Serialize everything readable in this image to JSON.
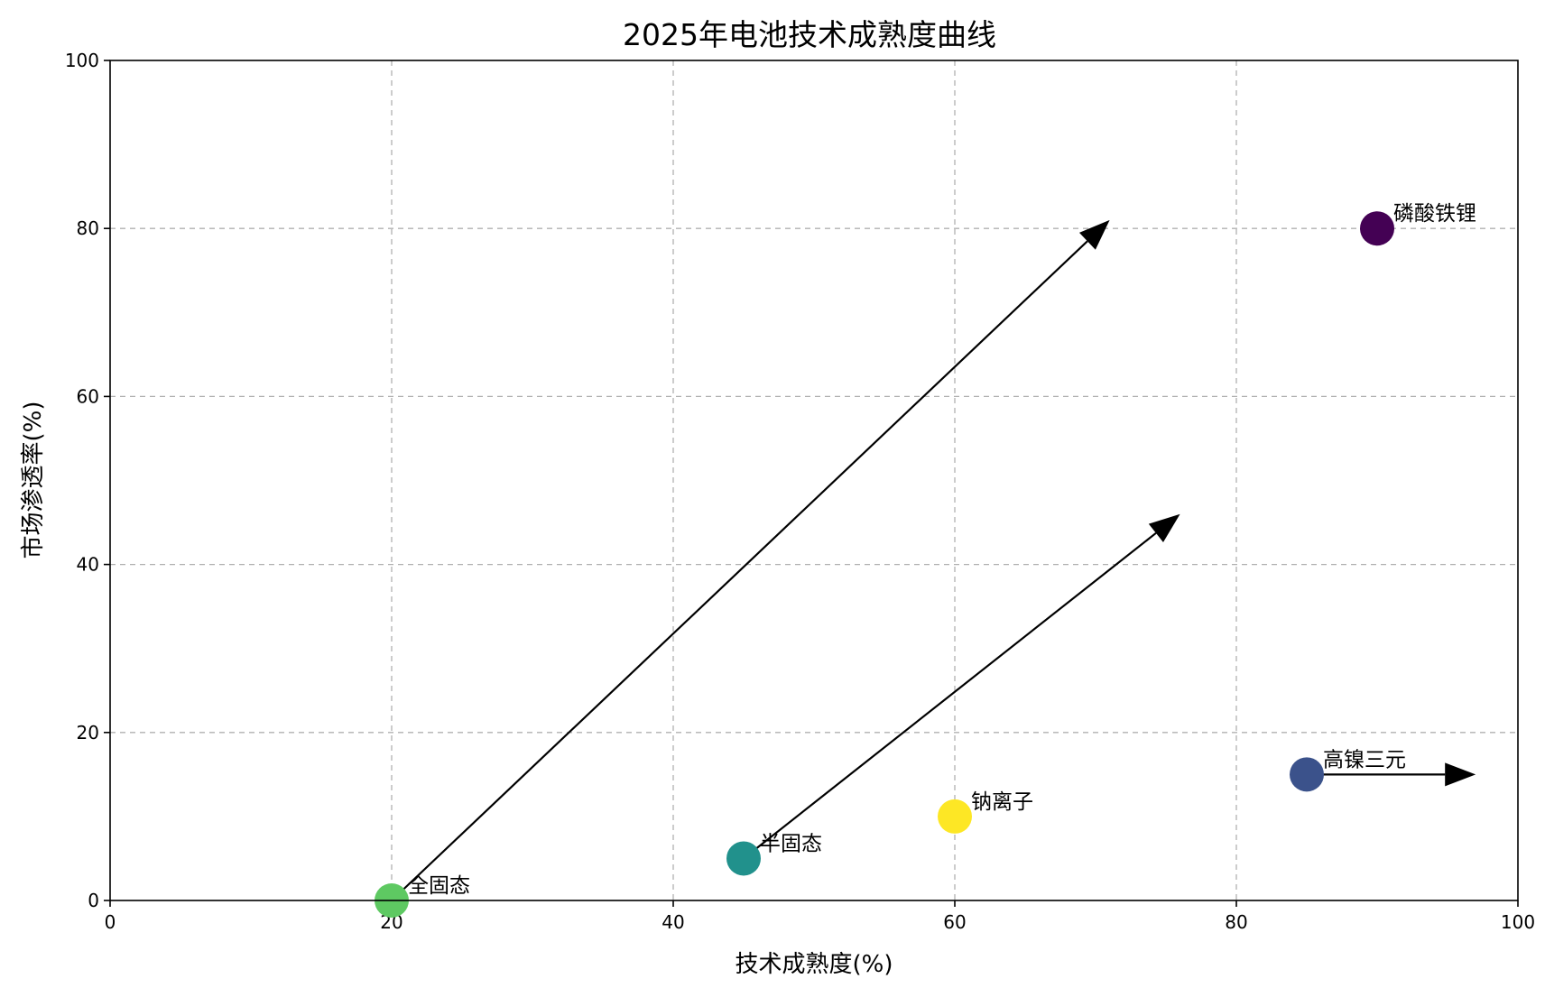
{
  "chart_data": {
    "type": "scatter",
    "title": "2025年电池技术成熟度曲线",
    "xlabel": "技术成熟度(%)",
    "ylabel": "市场渗透率(%)",
    "xlim": [
      0,
      100
    ],
    "ylim": [
      0,
      100
    ],
    "xticks": [
      "0",
      "20",
      "40",
      "60",
      "80",
      "100"
    ],
    "yticks": [
      "0",
      "20",
      "40",
      "60",
      "80",
      "100"
    ],
    "grid": true,
    "points": [
      {
        "label": "磷酸铁锂",
        "x": 90,
        "y": 80,
        "color": "#440154"
      },
      {
        "label": "高镍三元",
        "x": 85,
        "y": 15,
        "color": "#3b528b"
      },
      {
        "label": "半固态",
        "x": 45,
        "y": 5,
        "color": "#21918c"
      },
      {
        "label": "全固态",
        "x": 20,
        "y": 0,
        "color": "#5ec962"
      },
      {
        "label": "钠离子",
        "x": 60,
        "y": 10,
        "color": "#fde725"
      }
    ],
    "arrows": [
      {
        "from_x": 20,
        "from_y": 0,
        "to_x": 71,
        "to_y": 81
      },
      {
        "from_x": 45,
        "from_y": 5,
        "to_x": 76,
        "to_y": 46
      },
      {
        "from_x": 85,
        "from_y": 15,
        "to_x": 97,
        "to_y": 15
      }
    ]
  }
}
